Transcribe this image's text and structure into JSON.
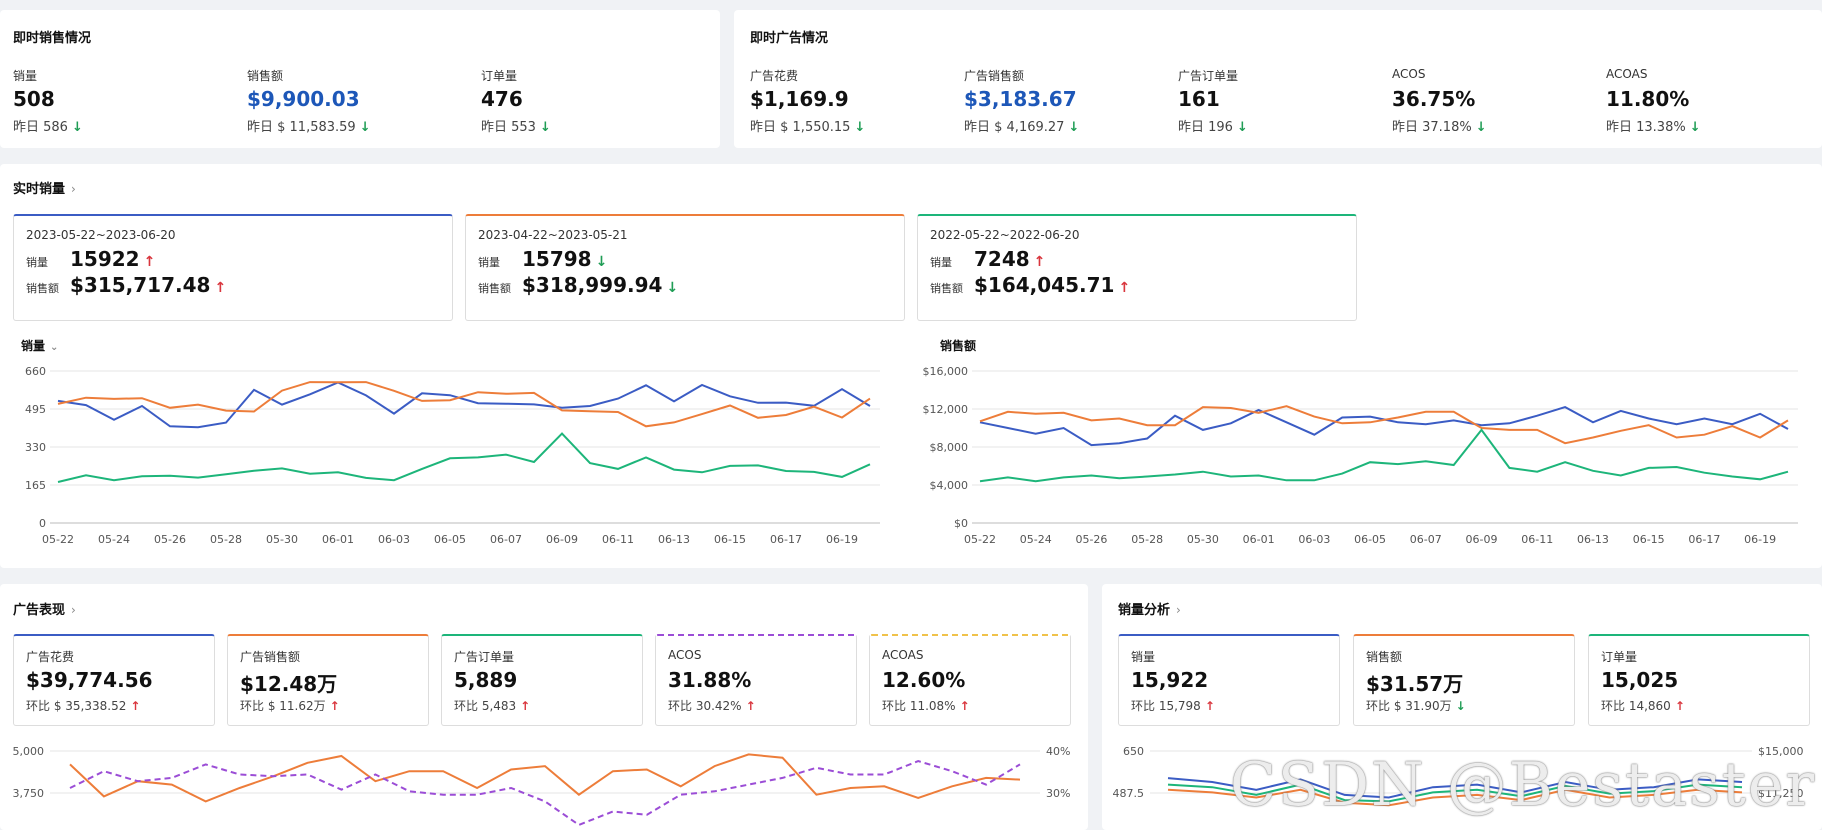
{
  "instant_sales": {
    "title": "即时销售情况",
    "metrics": [
      {
        "label": "销量",
        "value": "508",
        "yesterday": "昨日 586",
        "trend": "down"
      },
      {
        "label": "销售额",
        "value": "$9,900.03",
        "yesterday": "昨日 $ 11,583.59",
        "trend": "down",
        "highlight": true
      },
      {
        "label": "订单量",
        "value": "476",
        "yesterday": "昨日 553",
        "trend": "down"
      }
    ]
  },
  "instant_ads": {
    "title": "即时广告情况",
    "metrics": [
      {
        "label": "广告花费",
        "value": "$1,169.9",
        "yesterday": "昨日 $ 1,550.15",
        "trend": "down"
      },
      {
        "label": "广告销售额",
        "value": "$3,183.67",
        "yesterday": "昨日 $ 4,169.27",
        "trend": "down",
        "highlight": true
      },
      {
        "label": "广告订单量",
        "value": "161",
        "yesterday": "昨日 196",
        "trend": "down"
      },
      {
        "label": "ACOS",
        "value": "36.75%",
        "yesterday": "昨日 37.18%",
        "trend": "down"
      },
      {
        "label": "ACOAS",
        "value": "11.80%",
        "yesterday": "昨日 13.38%",
        "trend": "down"
      }
    ]
  },
  "realtime": {
    "title": "实时销量",
    "periods": [
      {
        "range": "2023-05-22~2023-06-20",
        "qty_label": "销量",
        "qty": "15922",
        "qty_trend": "up",
        "amt_label": "销售额",
        "amt": "$315,717.48",
        "amt_trend": "up",
        "color": "#3b5cc4"
      },
      {
        "range": "2023-04-22~2023-05-21",
        "qty_label": "销量",
        "qty": "15798",
        "qty_trend": "down",
        "amt_label": "销售额",
        "amt": "$318,999.94",
        "amt_trend": "down",
        "color": "#ed7d3a"
      },
      {
        "range": "2022-05-22~2022-06-20",
        "qty_label": "销量",
        "qty": "7248",
        "qty_trend": "up",
        "amt_label": "销售额",
        "amt": "$164,045.71",
        "amt_trend": "up",
        "color": "#1db57a"
      }
    ],
    "left_chart_dropdown": "销量",
    "right_chart_title": "销售额"
  },
  "ad_performance": {
    "title": "广告表现",
    "kpis": [
      {
        "label": "广告花费",
        "value": "$39,774.56",
        "compare": "环比 $ 35,338.52",
        "trend": "up",
        "color": "#3b5cc4",
        "dashed": false
      },
      {
        "label": "广告销售额",
        "value": "$12.48万",
        "compare": "环比 $ 11.62万",
        "trend": "up",
        "color": "#ed7d3a",
        "dashed": false
      },
      {
        "label": "广告订单量",
        "value": "5,889",
        "compare": "环比 5,483",
        "trend": "up",
        "color": "#1db57a",
        "dashed": false
      },
      {
        "label": "ACOS",
        "value": "31.88%",
        "compare": "环比 30.42%",
        "trend": "up",
        "color": "#9b4dd6",
        "dashed": true
      },
      {
        "label": "ACOAS",
        "value": "12.60%",
        "compare": "环比 11.08%",
        "trend": "up",
        "color": "#f0c24a",
        "dashed": true
      }
    ],
    "y_left_ticks": [
      "5,000",
      "3,750"
    ],
    "y_right_ticks": [
      "40%",
      "30%"
    ]
  },
  "sales_analysis": {
    "title": "销量分析",
    "kpis": [
      {
        "label": "销量",
        "value": "15,922",
        "compare": "环比 15,798",
        "trend": "up",
        "color": "#3b5cc4"
      },
      {
        "label": "销售额",
        "value": "$31.57万",
        "compare": "环比 $ 31.90万",
        "trend": "down",
        "color": "#ed7d3a"
      },
      {
        "label": "订单量",
        "value": "15,025",
        "compare": "环比 14,860",
        "trend": "up",
        "color": "#1db57a"
      }
    ],
    "y_left_ticks": [
      "650",
      "487.5"
    ],
    "y_right_ticks": [
      "$15,000",
      "$11,250"
    ]
  },
  "watermark": "CSDN @Bestaster",
  "icons": {
    "down": "arrow-down-icon",
    "up": "arrow-up-icon",
    "chevron": "chevron-right-icon"
  },
  "chart_data": [
    {
      "type": "line",
      "ylabel": "",
      "ylim": [
        0,
        660
      ],
      "y_ticks": [
        "0",
        "165",
        "330",
        "495",
        "660"
      ],
      "x": [
        "05-22",
        "05-23",
        "05-24",
        "05-25",
        "05-26",
        "05-27",
        "05-28",
        "05-29",
        "05-30",
        "05-31",
        "06-01",
        "06-02",
        "06-03",
        "06-04",
        "06-05",
        "06-06",
        "06-07",
        "06-08",
        "06-09",
        "06-10",
        "06-11",
        "06-12",
        "06-13",
        "06-14",
        "06-15",
        "06-16",
        "06-17",
        "06-18",
        "06-19",
        "06-20"
      ],
      "x_tick_labels": [
        "05-22",
        "05-24",
        "05-26",
        "05-28",
        "05-30",
        "06-01",
        "06-03",
        "06-05",
        "06-07",
        "06-09",
        "06-11",
        "06-13",
        "06-15",
        "06-17",
        "06-19"
      ],
      "series": [
        {
          "values": [
            530,
            512,
            448,
            508,
            420,
            416,
            436,
            578,
            514,
            559,
            610,
            554,
            475,
            563,
            555,
            520,
            518,
            515,
            500,
            508,
            540,
            598,
            528,
            599,
            550,
            522,
            523,
            509,
            581,
            508
          ],
          "color": "#3b5cc4"
        },
        {
          "values": [
            517,
            544,
            539,
            542,
            500,
            514,
            488,
            484,
            575,
            612,
            611,
            612,
            574,
            530,
            533,
            568,
            561,
            565,
            489,
            485,
            482,
            420,
            437,
            473,
            510,
            457,
            469,
            505,
            458,
            540
          ],
          "color": "#ed7d3a"
        },
        {
          "values": [
            178,
            207,
            186,
            203,
            205,
            197,
            212,
            227,
            237,
            214,
            220,
            196,
            186,
            235,
            281,
            285,
            297,
            265,
            388,
            260,
            235,
            285,
            232,
            220,
            248,
            250,
            226,
            222,
            200,
            255
          ],
          "color": "#1db57a"
        }
      ]
    },
    {
      "type": "line",
      "title": "销售额",
      "ylim": [
        0,
        16000
      ],
      "y_ticks": [
        "$0",
        "$4,000",
        "$8,000",
        "$12,000",
        "$16,000"
      ],
      "x": [
        "05-22",
        "05-23",
        "05-24",
        "05-25",
        "05-26",
        "05-27",
        "05-28",
        "05-29",
        "05-30",
        "05-31",
        "06-01",
        "06-02",
        "06-03",
        "06-04",
        "06-05",
        "06-06",
        "06-07",
        "06-08",
        "06-09",
        "06-10",
        "06-11",
        "06-12",
        "06-13",
        "06-14",
        "06-15",
        "06-16",
        "06-17",
        "06-18",
        "06-19",
        "06-20"
      ],
      "x_tick_labels": [
        "05-22",
        "05-24",
        "05-26",
        "05-28",
        "05-30",
        "06-01",
        "06-03",
        "06-05",
        "06-07",
        "06-09",
        "06-11",
        "06-13",
        "06-15",
        "06-17",
        "06-19"
      ],
      "series": [
        {
          "values": [
            10600,
            10000,
            9400,
            10000,
            8200,
            8400,
            8900,
            11300,
            9800,
            10500,
            11900,
            10600,
            9300,
            11100,
            11200,
            10600,
            10400,
            10800,
            10300,
            10500,
            11300,
            12200,
            10600,
            11800,
            11000,
            10400,
            11000,
            10400,
            11500,
            9900
          ],
          "color": "#3b5cc4"
        },
        {
          "values": [
            10700,
            11700,
            11500,
            11600,
            10800,
            11000,
            10300,
            10300,
            12200,
            12100,
            11600,
            12300,
            11200,
            10500,
            10600,
            11100,
            11700,
            11700,
            10000,
            9800,
            9800,
            8400,
            9000,
            9700,
            10300,
            9000,
            9300,
            10200,
            9000,
            10800
          ],
          "color": "#ed7d3a"
        },
        {
          "values": [
            4400,
            4800,
            4400,
            4800,
            5000,
            4700,
            4900,
            5100,
            5400,
            4900,
            5000,
            4500,
            4500,
            5200,
            6400,
            6200,
            6500,
            6100,
            9800,
            5800,
            5400,
            6400,
            5500,
            5000,
            5800,
            5900,
            5300,
            4900,
            4600,
            5400
          ],
          "color": "#1db57a"
        }
      ]
    },
    {
      "type": "line",
      "y_left_ticks": [
        "5,000",
        "3,750"
      ],
      "y_right_ticks": [
        "40%",
        "30%"
      ],
      "series": [
        {
          "values": [
            4600,
            3650,
            4100,
            4000,
            3500,
            3900,
            4250,
            4650,
            4850,
            4100,
            4400,
            4400,
            3900,
            4450,
            4550,
            3700,
            4400,
            4450,
            3950,
            4550,
            4900,
            4800,
            3700,
            3900,
            3950,
            3600,
            3950,
            4200,
            4150
          ],
          "color": "#ed7d3a",
          "axis": "left"
        },
        {
          "values": [
            3900,
            4400,
            4100,
            4200,
            4600,
            4300,
            4250,
            4300,
            3850,
            4300,
            3800,
            3700,
            3700,
            3900,
            3500,
            2800,
            3200,
            3100,
            3700,
            3800,
            4000,
            4200,
            4500,
            4300,
            4300,
            4700,
            4400,
            4000,
            4600
          ],
          "color": "#9b4dd6",
          "axis": "left",
          "dashed": true
        }
      ]
    },
    {
      "type": "line",
      "y_left_ticks": [
        "650",
        "487.5"
      ],
      "y_right_ticks": [
        "$15,000",
        "$11,250"
      ],
      "series": [
        {
          "values": [
            545,
            530,
            500,
            540,
            480,
            470,
            510,
            520,
            490,
            530,
            500,
            510,
            540,
            530
          ],
          "color": "#3b5cc4"
        },
        {
          "values": [
            500,
            490,
            470,
            500,
            450,
            440,
            470,
            480,
            460,
            500,
            470,
            480,
            500,
            490
          ],
          "color": "#ed7d3a"
        },
        {
          "values": [
            520,
            510,
            480,
            520,
            460,
            455,
            490,
            500,
            475,
            515,
            485,
            495,
            520,
            510
          ],
          "color": "#1db57a"
        }
      ]
    }
  ]
}
